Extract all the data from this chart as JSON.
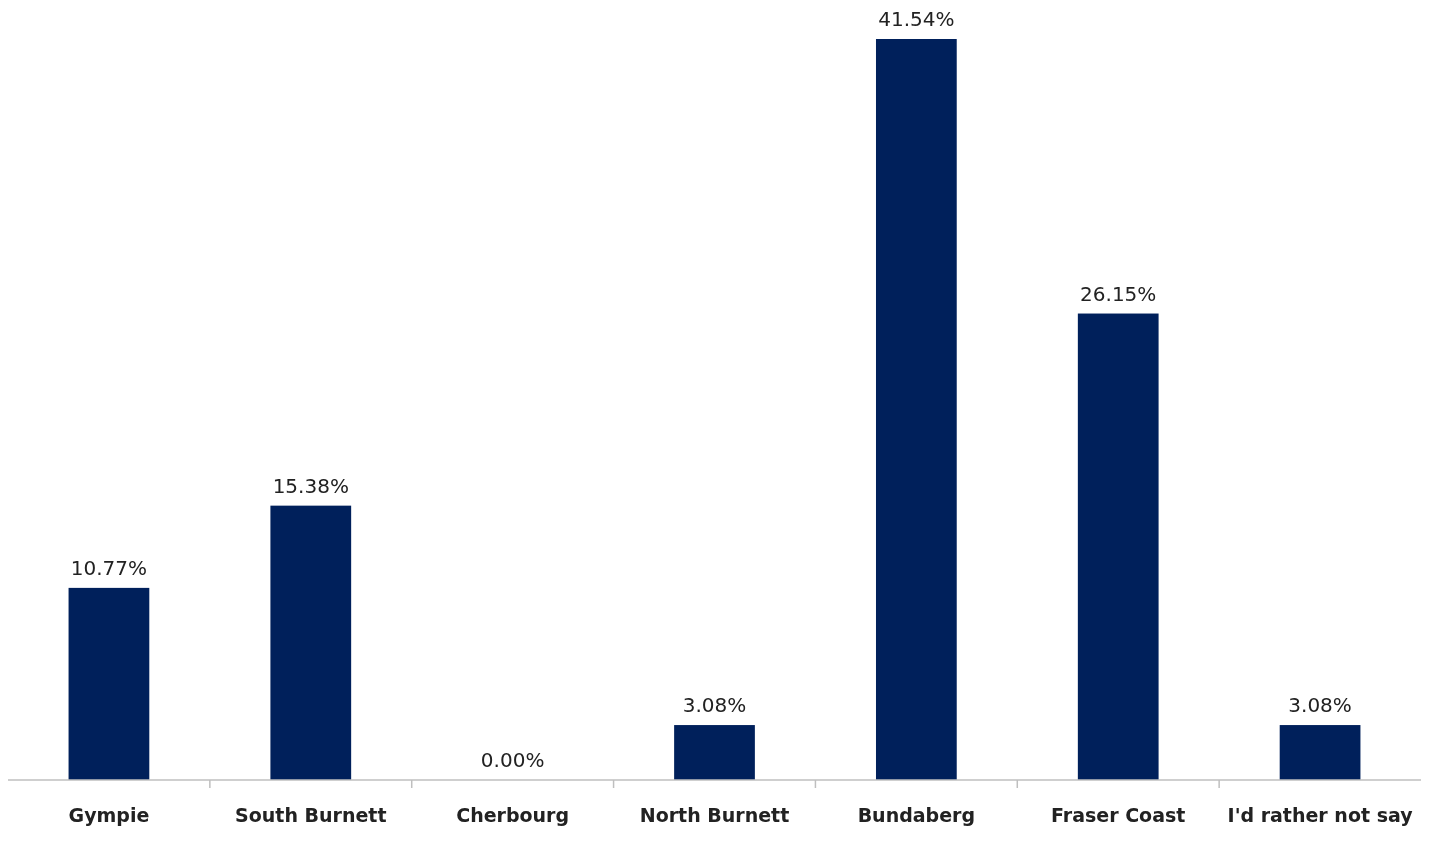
{
  "chart_data": {
    "type": "bar",
    "categories": [
      "Gympie",
      "South Burnett",
      "Cherbourg",
      "North Burnett",
      "Bundaberg",
      "Fraser Coast",
      "I'd rather not say"
    ],
    "values": [
      10.77,
      15.38,
      0,
      3.08,
      41.54,
      26.15,
      3.08
    ],
    "value_labels": [
      "10.77%",
      "15.38%",
      "0.00%",
      "3.08%",
      "41.54%",
      "26.15%",
      "3.08%"
    ],
    "color": "#00205b"
  }
}
